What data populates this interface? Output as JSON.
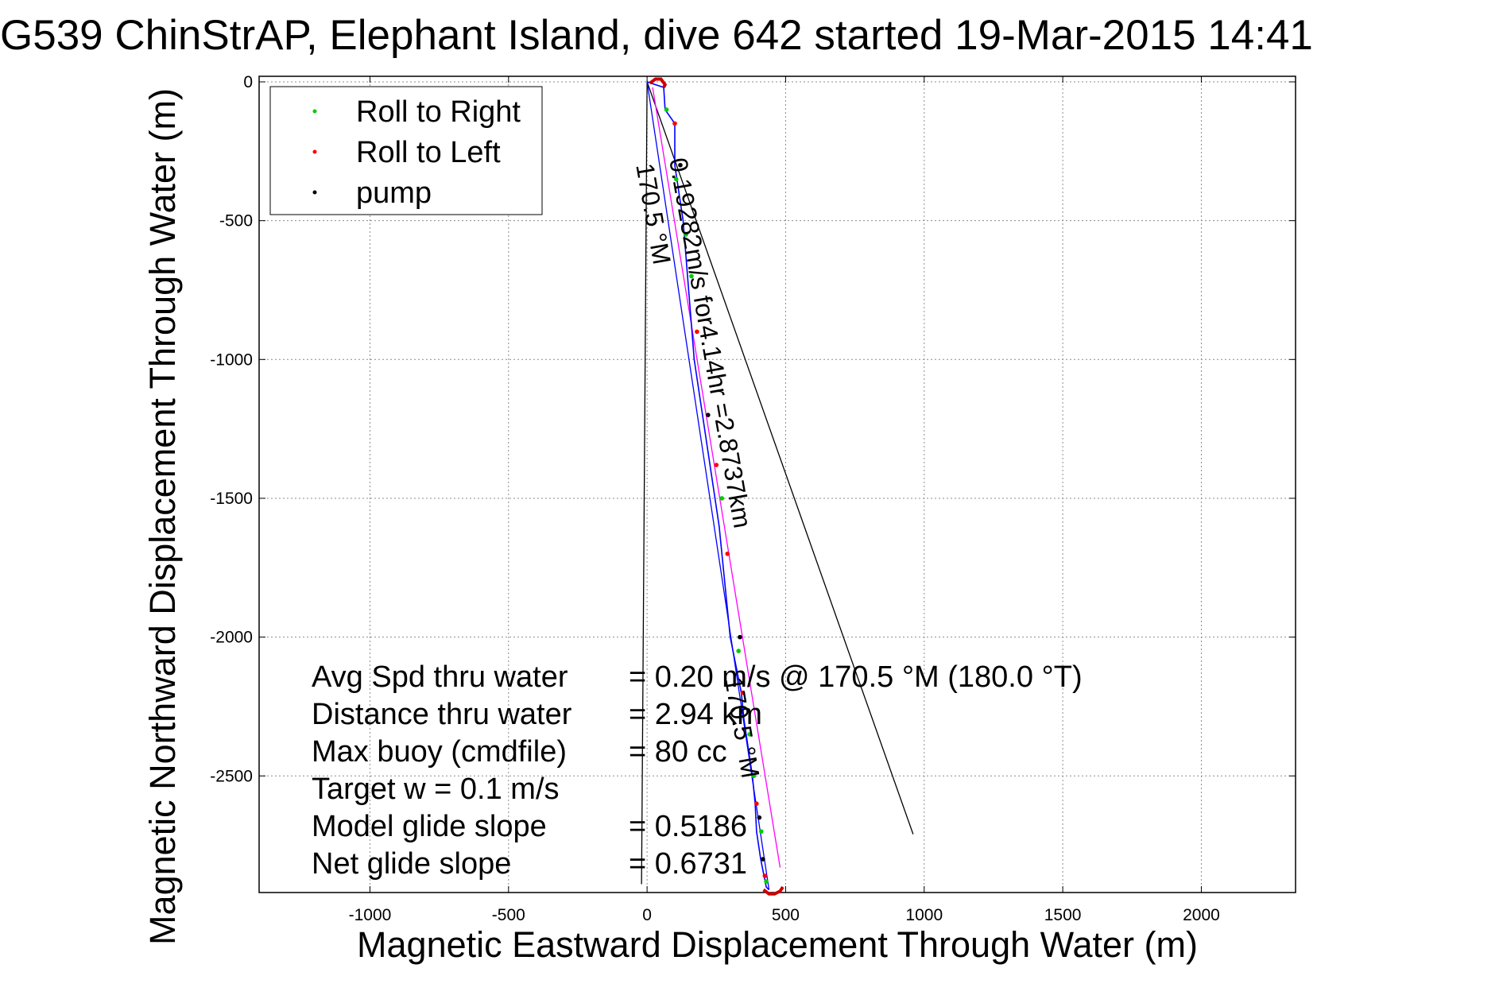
{
  "chart_data": {
    "type": "scatter",
    "title": "G539 ChinStrAP, Elephant Island, dive 642 started 19-Mar-2015 14:41",
    "xlabel": "Magnetic Eastward Displacement Through Water (m)",
    "ylabel": "Magnetic Northward Displacement Through Water (m)",
    "xlim": [
      -1400,
      2340
    ],
    "ylim": [
      -2920,
      20
    ],
    "xticks": [
      -1000,
      -500,
      0,
      500,
      1000,
      1500,
      2000
    ],
    "yticks": [
      0,
      -500,
      -1000,
      -1500,
      -2000,
      -2500
    ],
    "grid": true,
    "legend": {
      "placement": "top-left",
      "entries": [
        {
          "name": "Roll to Right",
          "color": "#00cc00"
        },
        {
          "name": "Roll to Left",
          "color": "#ff0000"
        },
        {
          "name": "pump",
          "color": "#000000"
        }
      ]
    },
    "series": [
      {
        "name": "track",
        "color": "#0000ff",
        "x": [
          0,
          60,
          65,
          100,
          100,
          130,
          150,
          170,
          200,
          230,
          260,
          280,
          300,
          320,
          340,
          350,
          365,
          380,
          390,
          395,
          410,
          420,
          430,
          440
        ],
        "y": [
          0,
          -20,
          -100,
          -150,
          -300,
          -500,
          -750,
          -1000,
          -1200,
          -1400,
          -1600,
          -1800,
          -2000,
          -2100,
          -2200,
          -2300,
          -2400,
          -2500,
          -2600,
          -2700,
          -2800,
          -2850,
          -2900,
          -2910
        ]
      },
      {
        "name": "Roll to Right",
        "color": "#00cc00",
        "x": [
          70,
          105,
          140,
          160,
          270,
          330,
          370,
          385,
          412,
          430
        ],
        "y": [
          -100,
          -350,
          -550,
          -700,
          -1500,
          -2050,
          -2350,
          -2500,
          -2700,
          -2880
        ]
      },
      {
        "name": "Roll to Left",
        "color": "#ff0000",
        "x": [
          100,
          180,
          250,
          290,
          345,
          395,
          425
        ],
        "y": [
          -150,
          -900,
          -1380,
          -1700,
          -2200,
          -2600,
          -2860
        ]
      },
      {
        "name": "pump",
        "color": "#000000",
        "x": [
          120,
          220,
          335,
          405,
          418
        ],
        "y": [
          -300,
          -1200,
          -2000,
          -2650,
          -2800
        ]
      },
      {
        "name": "surface",
        "color": "#cc0000",
        "x": [
          10,
          30,
          50,
          65,
          60,
          420,
          440,
          460,
          480,
          490
        ],
        "y": [
          -5,
          10,
          10,
          -10,
          -20,
          -2910,
          -2925,
          -2925,
          -2915,
          -2900
        ]
      }
    ],
    "lines": [
      {
        "name": "black-long",
        "color": "#000000",
        "x": [
          0,
          960
        ],
        "y": [
          0,
          -2710
        ]
      },
      {
        "name": "black-vertical",
        "color": "#000000",
        "x": [
          0,
          -20
        ],
        "y": [
          0,
          -2890
        ]
      },
      {
        "name": "magenta",
        "color": "#ff00ff",
        "x": [
          20,
          480
        ],
        "y": [
          -20,
          -2830
        ]
      },
      {
        "name": "blue-thin",
        "color": "#0000ff",
        "x": [
          0,
          440
        ],
        "y": [
          0,
          -2910
        ]
      }
    ],
    "annotations": [
      {
        "text": "0.19282m/s for4.14hr =2.8737km",
        "x": 80,
        "y": -280,
        "rotate": 80
      },
      {
        "text": "170.5 °M",
        "x": -40,
        "y": -300,
        "rotate": 80
      },
      {
        "text": "170.5 °M",
        "x": 280,
        "y": -2150,
        "rotate": 80
      }
    ],
    "stats": [
      {
        "label": "Avg Spd thru water",
        "value": "=  0.20 m/s @ 170.5 °M (180.0 °T)"
      },
      {
        "label": "Distance thru water",
        "value": "=  2.94 km"
      },
      {
        "label": "Max buoy (cmdfile)",
        "value": "= 80 cc"
      },
      {
        "label": "Target w    = 0.1 m/s",
        "value": ""
      },
      {
        "label": "Model glide slope",
        "value": "= 0.5186"
      },
      {
        "label": "Net glide slope",
        "value": "= 0.6731"
      }
    ]
  }
}
